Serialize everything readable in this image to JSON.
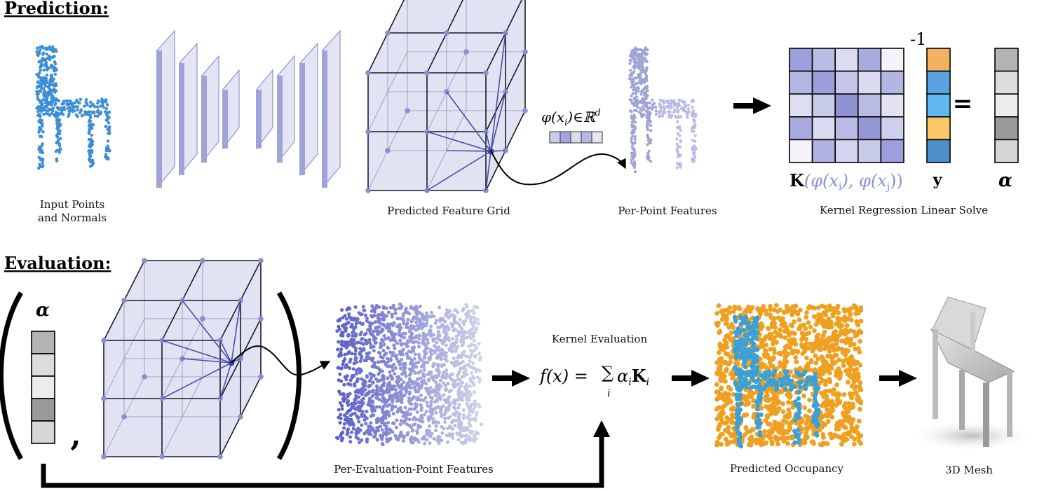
{
  "prediction": {
    "heading": "Prediction:",
    "captions": {
      "input_line1": "Input Points",
      "input_line2": "and Normals",
      "grid": "Predicted Feature Grid",
      "per_point": "Per-Point Features",
      "kernel_solve": "Kernel Regression Linear Solve"
    },
    "feature_label_phi": "φ(x",
    "feature_label_sub": "i",
    "feature_label_rest": ")∈ℝ",
    "feature_label_sup": "d",
    "inverse_exponent": "-1",
    "equals": "=",
    "kernel_K": "K",
    "kernel_args_1": "(φ(x",
    "kernel_sub_i": "i",
    "kernel_args_2": "), φ(x",
    "kernel_sub_j": "j",
    "kernel_args_3": "))",
    "y_label": "y",
    "alpha_label": "α"
  },
  "evaluation": {
    "heading": "Evaluation:",
    "alpha_label": "α",
    "comma": ",",
    "captions": {
      "per_eval": "Per-Evaluation-Point Features",
      "kernel_eval": "Kernel Evaluation",
      "occupancy": "Predicted Occupancy",
      "mesh": "3D Mesh"
    },
    "formula_lhs": "f(x) =",
    "formula_sum": "∑",
    "formula_sum_sub": "i",
    "formula_alpha": "α",
    "formula_alpha_sub": "i",
    "formula_K": "K",
    "formula_K_sub": "i"
  },
  "colors": {
    "grid_fill": "#c9cbe8",
    "grid_stroke": "#1a1a2e",
    "node": "#8a8fd0",
    "layer_face": "#9fa3d8",
    "layer_edge": "#7d82c6",
    "input_points": "#3d8ed6",
    "feature_points": "#a9acd9",
    "occupancy_orange": "#f0a020",
    "occupancy_blue": "#3aa0d8",
    "vec_y": [
      "#f2b25e",
      "#5aa3e0",
      "#5fb8f0",
      "#fbc766",
      "#4f8fca"
    ],
    "vec_alpha": [
      "#b3b3b3",
      "#dcdcdc",
      "#ececec",
      "#9a9a9a",
      "#d6d6d6"
    ],
    "vec_alpha_eval": [
      "#b3b3b3",
      "#dcdcdc",
      "#ececec",
      "#9a9a9a",
      "#d6d6d6"
    ],
    "K_matrix": [
      [
        "#9b9fdb",
        "#b9bce5",
        "#dcdcf0",
        "#a8abdd",
        "#f3f3f9"
      ],
      [
        "#b4b7e4",
        "#9a9ed9",
        "#c4c6ea",
        "#dadaf0",
        "#b3b6e3"
      ],
      [
        "#dddef1",
        "#c9cbea",
        "#8e92d3",
        "#b9bbe5",
        "#e2e2f3"
      ],
      [
        "#a8abdd",
        "#dadaf0",
        "#b9bbe5",
        "#9497d5",
        "#cdcfec"
      ],
      [
        "#f3f3f9",
        "#b0b3e2",
        "#d4d5ef",
        "#c9cbea",
        "#9b9fdb"
      ]
    ]
  }
}
